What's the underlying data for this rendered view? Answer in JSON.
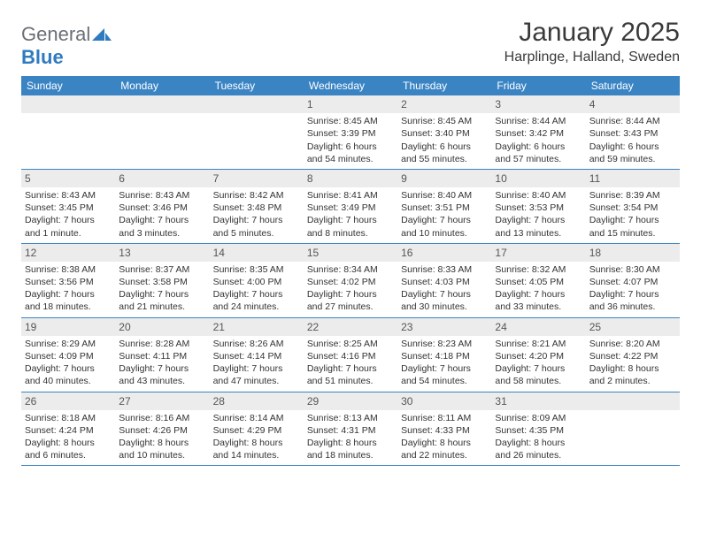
{
  "logo": {
    "general": "General",
    "blue": "Blue"
  },
  "header": {
    "month_title": "January 2025",
    "location": "Harplinge, Halland, Sweden"
  },
  "colors": {
    "header_blue": "#3a84c4",
    "daynum_bg": "#ececec",
    "logo_gray": "#6b7076",
    "logo_blue": "#2f7bbf"
  },
  "weekdays": [
    "Sunday",
    "Monday",
    "Tuesday",
    "Wednesday",
    "Thursday",
    "Friday",
    "Saturday"
  ],
  "weeks": [
    [
      null,
      null,
      null,
      {
        "n": "1",
        "sunrise": "Sunrise: 8:45 AM",
        "sunset": "Sunset: 3:39 PM",
        "daylight": "Daylight: 6 hours and 54 minutes."
      },
      {
        "n": "2",
        "sunrise": "Sunrise: 8:45 AM",
        "sunset": "Sunset: 3:40 PM",
        "daylight": "Daylight: 6 hours and 55 minutes."
      },
      {
        "n": "3",
        "sunrise": "Sunrise: 8:44 AM",
        "sunset": "Sunset: 3:42 PM",
        "daylight": "Daylight: 6 hours and 57 minutes."
      },
      {
        "n": "4",
        "sunrise": "Sunrise: 8:44 AM",
        "sunset": "Sunset: 3:43 PM",
        "daylight": "Daylight: 6 hours and 59 minutes."
      }
    ],
    [
      {
        "n": "5",
        "sunrise": "Sunrise: 8:43 AM",
        "sunset": "Sunset: 3:45 PM",
        "daylight": "Daylight: 7 hours and 1 minute."
      },
      {
        "n": "6",
        "sunrise": "Sunrise: 8:43 AM",
        "sunset": "Sunset: 3:46 PM",
        "daylight": "Daylight: 7 hours and 3 minutes."
      },
      {
        "n": "7",
        "sunrise": "Sunrise: 8:42 AM",
        "sunset": "Sunset: 3:48 PM",
        "daylight": "Daylight: 7 hours and 5 minutes."
      },
      {
        "n": "8",
        "sunrise": "Sunrise: 8:41 AM",
        "sunset": "Sunset: 3:49 PM",
        "daylight": "Daylight: 7 hours and 8 minutes."
      },
      {
        "n": "9",
        "sunrise": "Sunrise: 8:40 AM",
        "sunset": "Sunset: 3:51 PM",
        "daylight": "Daylight: 7 hours and 10 minutes."
      },
      {
        "n": "10",
        "sunrise": "Sunrise: 8:40 AM",
        "sunset": "Sunset: 3:53 PM",
        "daylight": "Daylight: 7 hours and 13 minutes."
      },
      {
        "n": "11",
        "sunrise": "Sunrise: 8:39 AM",
        "sunset": "Sunset: 3:54 PM",
        "daylight": "Daylight: 7 hours and 15 minutes."
      }
    ],
    [
      {
        "n": "12",
        "sunrise": "Sunrise: 8:38 AM",
        "sunset": "Sunset: 3:56 PM",
        "daylight": "Daylight: 7 hours and 18 minutes."
      },
      {
        "n": "13",
        "sunrise": "Sunrise: 8:37 AM",
        "sunset": "Sunset: 3:58 PM",
        "daylight": "Daylight: 7 hours and 21 minutes."
      },
      {
        "n": "14",
        "sunrise": "Sunrise: 8:35 AM",
        "sunset": "Sunset: 4:00 PM",
        "daylight": "Daylight: 7 hours and 24 minutes."
      },
      {
        "n": "15",
        "sunrise": "Sunrise: 8:34 AM",
        "sunset": "Sunset: 4:02 PM",
        "daylight": "Daylight: 7 hours and 27 minutes."
      },
      {
        "n": "16",
        "sunrise": "Sunrise: 8:33 AM",
        "sunset": "Sunset: 4:03 PM",
        "daylight": "Daylight: 7 hours and 30 minutes."
      },
      {
        "n": "17",
        "sunrise": "Sunrise: 8:32 AM",
        "sunset": "Sunset: 4:05 PM",
        "daylight": "Daylight: 7 hours and 33 minutes."
      },
      {
        "n": "18",
        "sunrise": "Sunrise: 8:30 AM",
        "sunset": "Sunset: 4:07 PM",
        "daylight": "Daylight: 7 hours and 36 minutes."
      }
    ],
    [
      {
        "n": "19",
        "sunrise": "Sunrise: 8:29 AM",
        "sunset": "Sunset: 4:09 PM",
        "daylight": "Daylight: 7 hours and 40 minutes."
      },
      {
        "n": "20",
        "sunrise": "Sunrise: 8:28 AM",
        "sunset": "Sunset: 4:11 PM",
        "daylight": "Daylight: 7 hours and 43 minutes."
      },
      {
        "n": "21",
        "sunrise": "Sunrise: 8:26 AM",
        "sunset": "Sunset: 4:14 PM",
        "daylight": "Daylight: 7 hours and 47 minutes."
      },
      {
        "n": "22",
        "sunrise": "Sunrise: 8:25 AM",
        "sunset": "Sunset: 4:16 PM",
        "daylight": "Daylight: 7 hours and 51 minutes."
      },
      {
        "n": "23",
        "sunrise": "Sunrise: 8:23 AM",
        "sunset": "Sunset: 4:18 PM",
        "daylight": "Daylight: 7 hours and 54 minutes."
      },
      {
        "n": "24",
        "sunrise": "Sunrise: 8:21 AM",
        "sunset": "Sunset: 4:20 PM",
        "daylight": "Daylight: 7 hours and 58 minutes."
      },
      {
        "n": "25",
        "sunrise": "Sunrise: 8:20 AM",
        "sunset": "Sunset: 4:22 PM",
        "daylight": "Daylight: 8 hours and 2 minutes."
      }
    ],
    [
      {
        "n": "26",
        "sunrise": "Sunrise: 8:18 AM",
        "sunset": "Sunset: 4:24 PM",
        "daylight": "Daylight: 8 hours and 6 minutes."
      },
      {
        "n": "27",
        "sunrise": "Sunrise: 8:16 AM",
        "sunset": "Sunset: 4:26 PM",
        "daylight": "Daylight: 8 hours and 10 minutes."
      },
      {
        "n": "28",
        "sunrise": "Sunrise: 8:14 AM",
        "sunset": "Sunset: 4:29 PM",
        "daylight": "Daylight: 8 hours and 14 minutes."
      },
      {
        "n": "29",
        "sunrise": "Sunrise: 8:13 AM",
        "sunset": "Sunset: 4:31 PM",
        "daylight": "Daylight: 8 hours and 18 minutes."
      },
      {
        "n": "30",
        "sunrise": "Sunrise: 8:11 AM",
        "sunset": "Sunset: 4:33 PM",
        "daylight": "Daylight: 8 hours and 22 minutes."
      },
      {
        "n": "31",
        "sunrise": "Sunrise: 8:09 AM",
        "sunset": "Sunset: 4:35 PM",
        "daylight": "Daylight: 8 hours and 26 minutes."
      },
      null
    ]
  ]
}
